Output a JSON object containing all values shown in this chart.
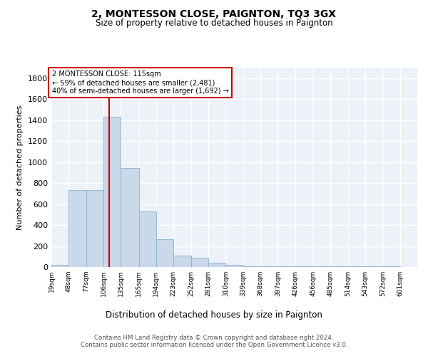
{
  "title": "2, MONTESSON CLOSE, PAIGNTON, TQ3 3GX",
  "subtitle": "Size of property relative to detached houses in Paignton",
  "xlabel": "Distribution of detached houses by size in Paignton",
  "ylabel": "Number of detached properties",
  "footer_line1": "Contains HM Land Registry data © Crown copyright and database right 2024.",
  "footer_line2": "Contains public sector information licensed under the Open Government Licence v3.0.",
  "bin_edges": [
    19,
    48,
    77,
    106,
    135,
    165,
    194,
    223,
    252,
    281,
    310,
    339,
    368,
    397,
    426,
    456,
    485,
    514,
    543,
    572,
    601
  ],
  "bar_heights": [
    20,
    730,
    730,
    1430,
    940,
    530,
    265,
    110,
    90,
    40,
    20,
    10,
    10,
    10,
    10,
    10,
    10,
    10,
    10,
    10
  ],
  "bar_color": "#c9d9ea",
  "bar_edgecolor": "#8ab0cc",
  "bg_color": "#edf2f9",
  "grid_color": "#d0d8e8",
  "vline_x": 115,
  "vline_color": "#cc0000",
  "annotation_line1": "2 MONTESSON CLOSE: 115sqm",
  "annotation_line2": "← 59% of detached houses are smaller (2,481)",
  "annotation_line3": "40% of semi-detached houses are larger (1,692) →",
  "annotation_box_edgecolor": "#cc0000",
  "ylim_max": 1900,
  "yticks": [
    0,
    200,
    400,
    600,
    800,
    1000,
    1200,
    1400,
    1600,
    1800
  ]
}
